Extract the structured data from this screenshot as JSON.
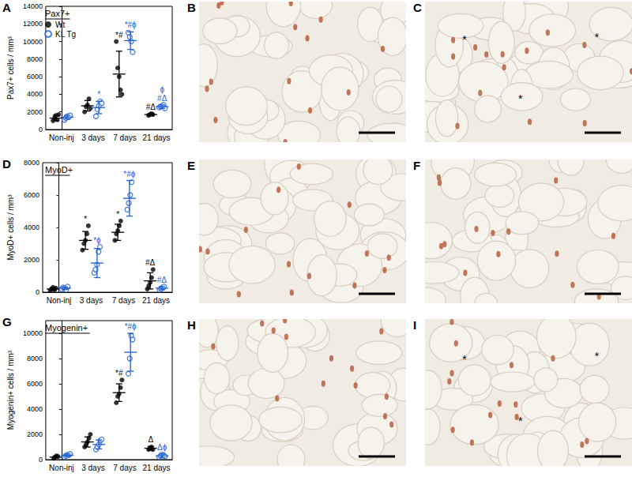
{
  "chart_data": [
    {
      "panel_label": "A",
      "type": "scatter",
      "title": "Pax7+",
      "categories": [
        "Non-inj",
        "3 days",
        "7 days",
        "21 days"
      ],
      "ylabel": "Pax7+ cells / mm³",
      "ylim": [
        0,
        14000
      ],
      "yticks": [
        0,
        2000,
        4000,
        6000,
        8000,
        10000,
        12000,
        14000
      ],
      "grid": false,
      "legend": "upper left",
      "series": [
        {
          "name": "Wt",
          "color": "#000000",
          "marker": "filled circle",
          "values": [
            [
              1000,
              1300,
              1600,
              1100,
              1700
            ],
            [
              2000,
              2600,
              2800,
              3500,
              2400
            ],
            [
              10000,
              7000,
              6000,
              4500,
              4000
            ],
            [
              1600,
              1700,
              1800,
              1700
            ]
          ],
          "mean": [
            1300,
            2700,
            6300,
            1700
          ],
          "sd": [
            300,
            600,
            2600,
            100
          ],
          "annotations": [
            null,
            null,
            "*#",
            "#Δ"
          ]
        },
        {
          "name": "KL Tg",
          "color": "#1f5fd1",
          "marker": "open circle",
          "values": [
            [
              1100,
              1300,
              1500,
              1400,
              1600
            ],
            [
              1500,
              2300,
              2700,
              3200,
              3000
            ],
            [
              11000,
              10500,
              10000,
              8800
            ],
            [
              2500,
              2600,
              2700,
              2800,
              2400
            ]
          ],
          "mean": [
            1400,
            2500,
            10100,
            2600
          ],
          "sd": [
            200,
            700,
            1000,
            200
          ],
          "annotations": [
            null,
            "*",
            "*#ϕ",
            "ϕ\n#Δ"
          ]
        }
      ]
    },
    {
      "panel_label": "D",
      "type": "scatter",
      "title": "MyoD+",
      "categories": [
        "Non-inj",
        "3 days",
        "7 days",
        "21 days"
      ],
      "ylabel": "MyoD+ cells / mm³",
      "ylim": [
        0,
        8000
      ],
      "yticks": [
        0,
        2000,
        4000,
        6000,
        8000
      ],
      "grid": false,
      "series": [
        {
          "name": "Wt",
          "color": "#000000",
          "marker": "filled circle",
          "values": [
            [
              100,
              200,
              300,
              150,
              250
            ],
            [
              2600,
              3000,
              3200,
              3600,
              4100
            ],
            [
              3200,
              3600,
              3800,
              4100,
              4400
            ],
            [
              200,
              400,
              600,
              900,
              1400
            ]
          ],
          "mean": [
            200,
            3200,
            3700,
            700
          ],
          "sd": [
            80,
            550,
            500,
            500
          ],
          "annotations": [
            null,
            "*",
            "*",
            "#Δ"
          ]
        },
        {
          "name": "KL Tg",
          "color": "#1f5fd1",
          "marker": "open circle",
          "values": [
            [
              200,
              300,
              250,
              150,
              350
            ],
            [
              1200,
              1400,
              1700,
              2500,
              2800
            ],
            [
              5100,
              5500,
              6000,
              6800
            ],
            [
              150,
              200,
              300,
              350
            ]
          ],
          "mean": [
            250,
            1800,
            5800,
            250
          ],
          "sd": [
            80,
            900,
            1100,
            100
          ],
          "annotations": [
            null,
            "*ϕ",
            "*#ϕ",
            "#Δ"
          ]
        }
      ]
    },
    {
      "panel_label": "G",
      "type": "scatter",
      "title": "Myogenin+",
      "categories": [
        "Non-inj",
        "3 days",
        "7 days",
        "21 days"
      ],
      "ylabel": "Myogenin+ cells / mm³",
      "ylim": [
        0,
        11000
      ],
      "yticks": [
        0,
        2000,
        4000,
        6000,
        8000,
        10000
      ],
      "grid": false,
      "series": [
        {
          "name": "Wt",
          "color": "#000000",
          "marker": "filled circle",
          "values": [
            [
              100,
              200,
              300,
              250
            ],
            [
              1000,
              1200,
              1400,
              1700,
              2000
            ],
            [
              4500,
              5000,
              5200,
              5700,
              6300
            ],
            [
              800,
              900,
              1000,
              800
            ]
          ],
          "mean": [
            200,
            1400,
            5300,
            900
          ],
          "sd": [
            90,
            400,
            700,
            150
          ],
          "annotations": [
            null,
            null,
            "*#",
            "Δ"
          ]
        },
        {
          "name": "KL Tg",
          "color": "#1f5fd1",
          "marker": "open circle",
          "values": [
            [
              200,
              300,
              400,
              350,
              450
            ],
            [
              800,
              1000,
              1200,
              1500,
              1600
            ],
            [
              6800,
              8000,
              9800,
              9500
            ],
            [
              200,
              300,
              400,
              350,
              250
            ]
          ],
          "mean": [
            350,
            1200,
            8500,
            300
          ],
          "sd": [
            100,
            350,
            1500,
            150
          ],
          "annotations": [
            null,
            null,
            "*#ϕ",
            "Δϕ"
          ]
        }
      ]
    }
  ],
  "images": [
    {
      "panel_label": "B"
    },
    {
      "panel_label": "C",
      "annotations": [
        "*",
        "*",
        "*"
      ]
    },
    {
      "panel_label": "E"
    },
    {
      "panel_label": "F"
    },
    {
      "panel_label": "H"
    },
    {
      "panel_label": "I",
      "annotations": [
        "*",
        "*",
        "*"
      ]
    }
  ]
}
